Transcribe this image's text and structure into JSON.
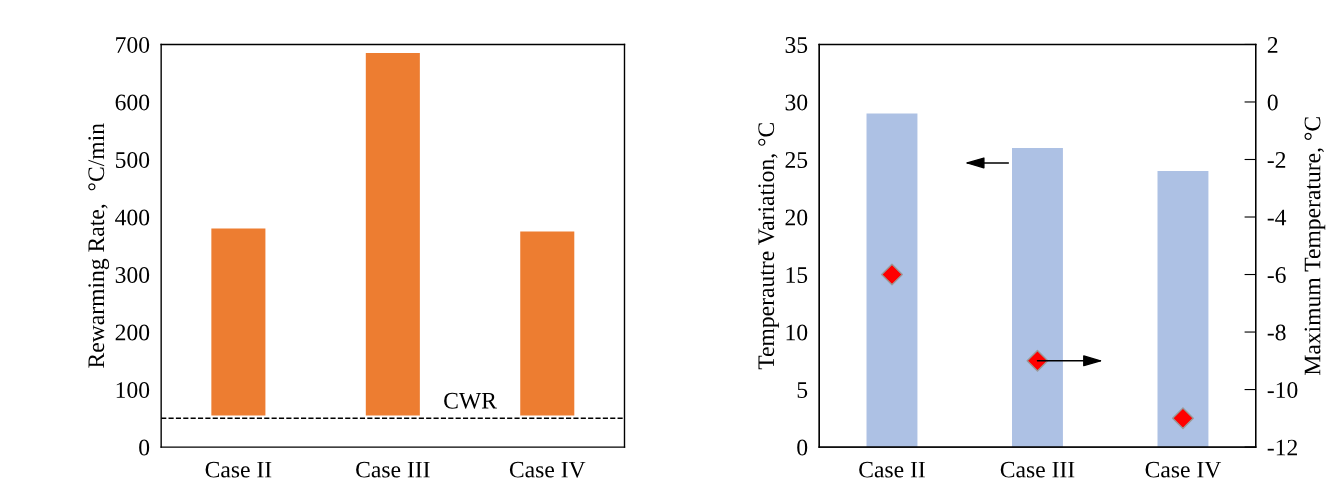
{
  "chart_data": [
    {
      "type": "bar",
      "ylabel": "Rewarming Rate,  °C/min",
      "categories": [
        "Case II",
        "Case III",
        "Case IV"
      ],
      "series": [
        {
          "color": "#ed7d31",
          "values": [
            325,
            630,
            320
          ],
          "base": [
            55,
            55,
            55
          ]
        }
      ],
      "ylim": [
        0,
        700
      ],
      "yticks": [
        0,
        100,
        200,
        300,
        400,
        500,
        600,
        700
      ],
      "grid": false,
      "legend": false,
      "ref_lines": [
        {
          "axis": "y",
          "value": 50,
          "label": "CWR",
          "color": "#000000",
          "line_style": "dashed"
        }
      ]
    },
    {
      "type": "bar",
      "ylabel": "Temperautre Variation, °C",
      "y2label": "Maximum Temperature, °C",
      "categories": [
        "Case II",
        "Case III",
        "Case IV"
      ],
      "series": [
        {
          "color": "#adc1e4",
          "values": [
            29,
            26,
            24
          ],
          "axis": "y"
        },
        {
          "type": "scatter",
          "color": "#ff0000",
          "values": [
            -6,
            -9,
            -11
          ],
          "axis": "y2",
          "marker": "diamond"
        }
      ],
      "ylim": [
        0,
        35
      ],
      "yticks": [
        0,
        5,
        10,
        15,
        20,
        25,
        30,
        35
      ],
      "y2lim": [
        -12,
        2
      ],
      "y2ticks": [
        -12,
        -10,
        -8,
        -6,
        -4,
        -2,
        0,
        2
      ],
      "grid": false,
      "legend": false
    }
  ]
}
